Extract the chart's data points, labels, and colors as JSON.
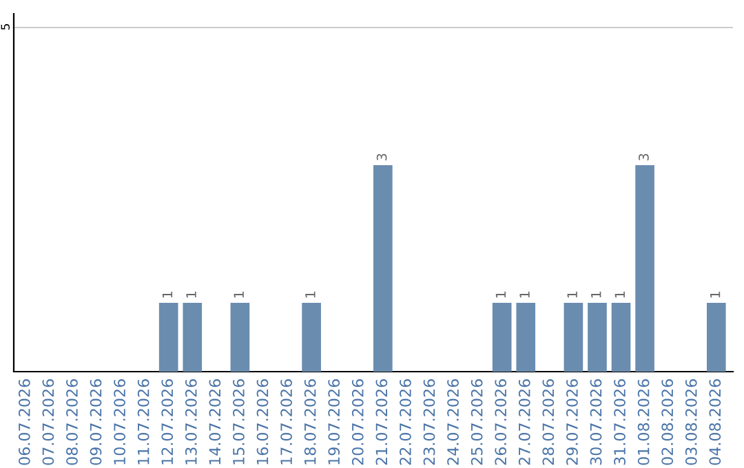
{
  "chart_data": {
    "type": "bar",
    "categories": [
      "06.07.2026",
      "07.07.2026",
      "08.07.2026",
      "09.07.2026",
      "10.07.2026",
      "11.07.2026",
      "12.07.2026",
      "13.07.2026",
      "14.07.2026",
      "15.07.2026",
      "16.07.2026",
      "17.07.2026",
      "18.07.2026",
      "19.07.2026",
      "20.07.2026",
      "21.07.2026",
      "22.07.2026",
      "23.07.2026",
      "24.07.2026",
      "25.07.2026",
      "26.07.2026",
      "27.07.2026",
      "28.07.2026",
      "29.07.2026",
      "30.07.2026",
      "31.07.2026",
      "01.08.2026",
      "02.08.2026",
      "03.08.2026",
      "04.08.2026"
    ],
    "values": [
      0,
      0,
      0,
      0,
      0,
      0,
      1,
      1,
      0,
      1,
      0,
      0,
      1,
      0,
      0,
      3,
      0,
      0,
      0,
      0,
      1,
      1,
      0,
      1,
      1,
      1,
      3,
      0,
      0,
      1
    ],
    "value_labels": [
      null,
      null,
      null,
      null,
      null,
      null,
      "1",
      "1",
      null,
      "1",
      null,
      null,
      "1",
      null,
      null,
      "3",
      null,
      null,
      null,
      null,
      "1",
      "1",
      null,
      "1",
      "1",
      "1",
      "3",
      null,
      null,
      "1"
    ],
    "color": "#6a8caf",
    "ylim": [
      0,
      5.2
    ],
    "yticks": [
      5
    ],
    "grid": "y"
  }
}
